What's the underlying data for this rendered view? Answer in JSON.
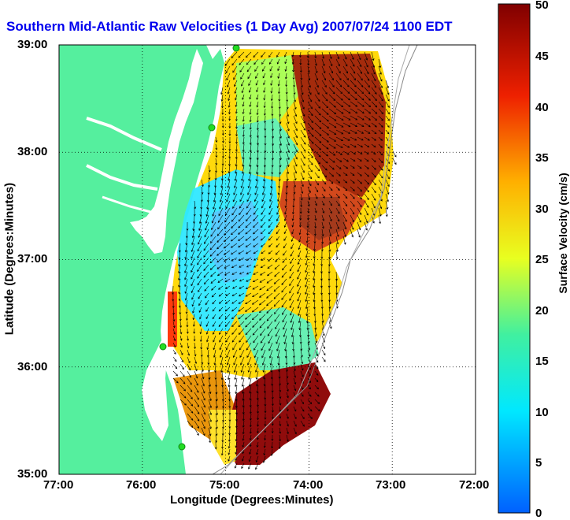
{
  "title": "Southern Mid-Atlantic Raw Velocities (1 Day Avg) 2007/07/24 1100 EDT",
  "xlabel": "Longitude (Degrees:Minutes)",
  "ylabel": "Latitude (Degrees:Minutes)",
  "x_ticks": [
    "77:00",
    "76:00",
    "75:00",
    "74:00",
    "73:00",
    "72:00"
  ],
  "y_ticks": [
    "39:00",
    "38:00",
    "37:00",
    "36:00",
    "35:00"
  ],
  "colorbar": {
    "label": "Surface Velocity (cm/s)",
    "ticks": [
      "50",
      "45",
      "40",
      "35",
      "30",
      "25",
      "20",
      "15",
      "10",
      "5",
      "0"
    ],
    "min": 0,
    "max": 50
  },
  "colors": {
    "land": "#55ef9e",
    "water": "#ffffff",
    "title": "#0000ee",
    "site_marker": "#22dd22"
  },
  "map_data": {
    "x_range_deg": [
      -77,
      -72
    ],
    "y_range_deg": [
      35,
      39
    ],
    "grid": true,
    "vector_field": "surface current arrows (black)",
    "high_speed_regions": [
      "offshore NJ/DE shelf (~45-50 cm/s)",
      "south of Cape Hatteras (~50 cm/s)"
    ],
    "low_speed_region": "mid-shelf off Chesapeake/Virginia (~8-15 cm/s)"
  }
}
